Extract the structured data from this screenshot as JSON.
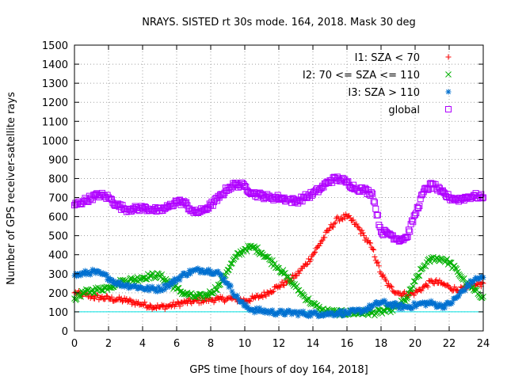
{
  "chart_data": {
    "type": "scatter",
    "title": "NRAYS. SISTED rt 30s mode. 164, 2018. Mask 30 deg",
    "xlabel": "GPS time [hours of doy 164, 2018]",
    "ylabel": "Number of GPS receiver-satellite rays",
    "xlim": [
      0,
      24
    ],
    "ylim": [
      0,
      1500
    ],
    "xticks": [
      "0",
      "2",
      "4",
      "6",
      "8",
      "10",
      "12",
      "14",
      "16",
      "18",
      "20",
      "22",
      "24"
    ],
    "yticks": [
      "0",
      "100",
      "200",
      "300",
      "400",
      "500",
      "600",
      "700",
      "800",
      "900",
      "1000",
      "1100",
      "1200",
      "1300",
      "1400",
      "1500"
    ],
    "grid": true,
    "legend_position": "top-right",
    "reference_line": {
      "y": 100,
      "color": "#00e0e0"
    },
    "series": [
      {
        "name": "I1: SZA < 70",
        "marker": "+",
        "color": "#ff0000",
        "x": [
          0,
          0.5,
          1,
          1.5,
          2,
          2.5,
          3,
          3.5,
          4,
          4.5,
          5,
          5.5,
          6,
          6.5,
          7,
          7.5,
          8,
          8.5,
          9,
          9.5,
          10,
          10.5,
          11,
          11.5,
          12,
          12.5,
          13,
          13.5,
          14,
          14.5,
          15,
          15.5,
          16,
          16.5,
          17,
          17.5,
          18,
          18.5,
          19,
          19.5,
          20,
          20.5,
          21,
          21.5,
          22,
          22.5,
          23,
          23.5,
          24
        ],
        "y": [
          200,
          190,
          180,
          175,
          170,
          165,
          160,
          150,
          140,
          130,
          125,
          130,
          140,
          150,
          155,
          160,
          165,
          165,
          170,
          165,
          160,
          170,
          185,
          210,
          235,
          260,
          290,
          340,
          400,
          470,
          540,
          590,
          600,
          560,
          500,
          430,
          300,
          230,
          200,
          190,
          200,
          230,
          260,
          250,
          230,
          215,
          220,
          240,
          250
        ]
      },
      {
        "name": "I2: 70 <= SZA <= 110",
        "marker": "x",
        "color": "#00b000",
        "x": [
          0,
          0.5,
          1,
          1.5,
          2,
          2.5,
          3,
          3.5,
          4,
          4.5,
          5,
          5.5,
          6,
          6.5,
          7,
          7.5,
          8,
          8.5,
          9,
          9.5,
          10,
          10.5,
          11,
          11.5,
          12,
          12.5,
          13,
          13.5,
          14,
          14.5,
          15,
          15.5,
          16,
          16.5,
          17,
          17.5,
          18,
          18.5,
          19,
          19.5,
          20,
          20.5,
          21,
          21.5,
          22,
          22.5,
          23,
          23.5,
          24
        ],
        "y": [
          170,
          200,
          210,
          220,
          230,
          250,
          265,
          270,
          280,
          290,
          290,
          260,
          220,
          195,
          180,
          180,
          200,
          240,
          320,
          390,
          430,
          440,
          410,
          370,
          330,
          280,
          230,
          180,
          140,
          110,
          100,
          95,
          95,
          95,
          95,
          95,
          100,
          110,
          130,
          170,
          260,
          340,
          380,
          380,
          360,
          310,
          250,
          210,
          180
        ]
      },
      {
        "name": "I3: SZA > 110",
        "marker": "*",
        "color": "#0070d0",
        "x": [
          0,
          0.5,
          1,
          1.5,
          2,
          2.5,
          3,
          3.5,
          4,
          4.5,
          5,
          5.5,
          6,
          6.5,
          7,
          7.5,
          8,
          8.5,
          9,
          9.5,
          10,
          10.5,
          11,
          11.5,
          12,
          12.5,
          13,
          13.5,
          14,
          14.5,
          15,
          15.5,
          16,
          16.5,
          17,
          17.5,
          18,
          18.5,
          19,
          19.5,
          20,
          20.5,
          21,
          21.5,
          22,
          22.5,
          23,
          23.5,
          24
        ],
        "y": [
          290,
          300,
          310,
          300,
          280,
          250,
          240,
          235,
          225,
          220,
          220,
          240,
          270,
          300,
          315,
          320,
          315,
          300,
          250,
          180,
          130,
          110,
          105,
          100,
          95,
          95,
          95,
          90,
          90,
          90,
          90,
          95,
          95,
          100,
          110,
          130,
          150,
          140,
          130,
          125,
          135,
          145,
          145,
          130,
          140,
          180,
          230,
          270,
          280
        ]
      },
      {
        "name": "global",
        "marker": "square",
        "color": "#b000ff",
        "x": [
          0,
          0.5,
          1,
          1.5,
          2,
          2.5,
          3,
          3.5,
          4,
          4.5,
          5,
          5.5,
          6,
          6.5,
          7,
          7.5,
          8,
          8.5,
          9,
          9.5,
          10,
          10.5,
          11,
          11.5,
          12,
          12.5,
          13,
          13.5,
          14,
          14.5,
          15,
          15.5,
          16,
          16.5,
          17,
          17.5,
          18,
          18.5,
          19,
          19.5,
          20,
          20.5,
          21,
          21.5,
          22,
          22.5,
          23,
          23.5,
          24
        ],
        "y": [
          660,
          680,
          700,
          715,
          700,
          660,
          640,
          640,
          645,
          640,
          630,
          650,
          680,
          670,
          620,
          630,
          660,
          700,
          750,
          770,
          760,
          720,
          710,
          700,
          700,
          690,
          680,
          700,
          720,
          750,
          790,
          800,
          780,
          750,
          740,
          720,
          520,
          510,
          480,
          490,
          610,
          730,
          770,
          730,
          700,
          690,
          700,
          710,
          700
        ]
      }
    ]
  }
}
